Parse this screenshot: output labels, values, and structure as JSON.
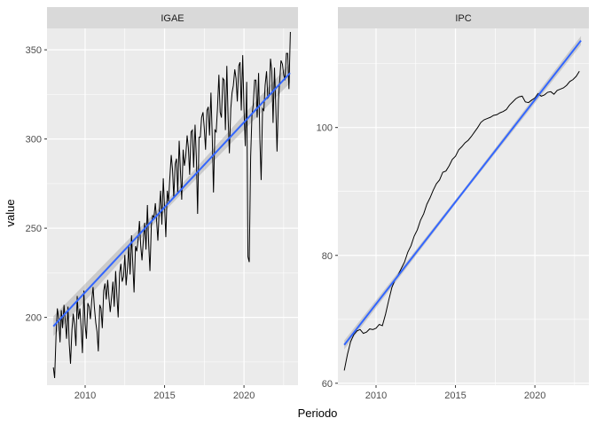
{
  "chart_data": {
    "type": "line",
    "xlabel": "Periodo",
    "ylabel": "value",
    "colors": {
      "series": "#000000",
      "trend": "#3366FF",
      "band": "#999999",
      "panel_bg": "#EBEBEB",
      "strip_bg": "#D9D9D9",
      "grid": "#FFFFFF"
    },
    "grid": true,
    "trend_line": "linear fit with confidence band",
    "panels": [
      {
        "strip": "IGAE",
        "xlim": [
          2007.6,
          2023.4
        ],
        "ylim": [
          162,
          362
        ],
        "x_ticks": [
          2010,
          2015,
          2020
        ],
        "x_tick_labels": [
          "2010",
          "2015",
          "2020"
        ],
        "y_ticks": [
          200,
          250,
          300,
          350
        ],
        "y_tick_labels": [
          "200",
          "250",
          "300",
          "350"
        ],
        "trend": {
          "start": [
            2008.0,
            195
          ],
          "end": [
            2022.9,
            337
          ],
          "band_halfwidth": 4
        },
        "series": {
          "name": "IGAE",
          "x": [
            2008.0,
            2008.08,
            2008.17,
            2008.25,
            2008.33,
            2008.42,
            2008.5,
            2008.58,
            2008.67,
            2008.75,
            2008.83,
            2008.92,
            2009.0,
            2009.08,
            2009.17,
            2009.25,
            2009.33,
            2009.42,
            2009.5,
            2009.58,
            2009.67,
            2009.75,
            2009.83,
            2009.92,
            2010.0,
            2010.08,
            2010.17,
            2010.25,
            2010.33,
            2010.42,
            2010.5,
            2010.58,
            2010.67,
            2010.75,
            2010.83,
            2010.92,
            2011.0,
            2011.08,
            2011.17,
            2011.25,
            2011.33,
            2011.42,
            2011.5,
            2011.58,
            2011.67,
            2011.75,
            2011.83,
            2011.92,
            2012.0,
            2012.08,
            2012.17,
            2012.25,
            2012.33,
            2012.42,
            2012.5,
            2012.58,
            2012.67,
            2012.75,
            2012.83,
            2012.92,
            2013.0,
            2013.08,
            2013.17,
            2013.25,
            2013.33,
            2013.42,
            2013.5,
            2013.58,
            2013.67,
            2013.75,
            2013.83,
            2013.92,
            2014.0,
            2014.08,
            2014.17,
            2014.25,
            2014.33,
            2014.42,
            2014.5,
            2014.58,
            2014.67,
            2014.75,
            2014.83,
            2014.92,
            2015.0,
            2015.08,
            2015.17,
            2015.25,
            2015.33,
            2015.42,
            2015.5,
            2015.58,
            2015.67,
            2015.75,
            2015.83,
            2015.92,
            2016.0,
            2016.08,
            2016.17,
            2016.25,
            2016.33,
            2016.42,
            2016.5,
            2016.58,
            2016.67,
            2016.75,
            2016.83,
            2016.92,
            2017.0,
            2017.08,
            2017.17,
            2017.25,
            2017.33,
            2017.42,
            2017.5,
            2017.58,
            2017.67,
            2017.75,
            2017.83,
            2017.92,
            2018.0,
            2018.08,
            2018.17,
            2018.25,
            2018.33,
            2018.42,
            2018.5,
            2018.58,
            2018.67,
            2018.75,
            2018.83,
            2018.92,
            2019.0,
            2019.08,
            2019.17,
            2019.25,
            2019.33,
            2019.42,
            2019.5,
            2019.58,
            2019.67,
            2019.75,
            2019.83,
            2019.92,
            2020.0,
            2020.08,
            2020.17,
            2020.25,
            2020.33,
            2020.42,
            2020.5,
            2020.58,
            2020.67,
            2020.75,
            2020.83,
            2020.92,
            2021.0,
            2021.08,
            2021.17,
            2021.25,
            2021.33,
            2021.42,
            2021.5,
            2021.58,
            2021.67,
            2021.75,
            2021.83,
            2021.92,
            2022.0,
            2022.08,
            2022.17,
            2022.25,
            2022.33,
            2022.42,
            2022.5,
            2022.58,
            2022.67,
            2022.75,
            2022.83,
            2022.92
          ],
          "values": [
            172,
            166,
            190,
            205,
            200,
            186,
            204,
            194,
            207,
            198,
            188,
            206,
            185,
            174,
            193,
            202,
            196,
            184,
            212,
            199,
            205,
            194,
            180,
            215,
            196,
            188,
            208,
            206,
            199,
            210,
            217,
            206,
            197,
            192,
            181,
            207,
            205,
            194,
            215,
            219,
            210,
            221,
            211,
            203,
            212,
            220,
            206,
            226,
            212,
            200,
            225,
            230,
            220,
            223,
            235,
            218,
            228,
            240,
            224,
            246,
            230,
            214,
            240,
            237,
            243,
            254,
            240,
            232,
            244,
            253,
            238,
            263,
            241,
            226,
            252,
            257,
            256,
            264,
            254,
            243,
            261,
            271,
            252,
            278,
            262,
            245,
            271,
            265,
            278,
            291,
            283,
            267,
            286,
            289,
            270,
            299,
            282,
            266,
            294,
            285,
            290,
            302,
            295,
            280,
            304,
            305,
            284,
            308,
            290,
            258,
            301,
            301,
            312,
            315,
            306,
            294,
            316,
            318,
            302,
            326,
            302,
            270,
            305,
            304,
            317,
            336,
            315,
            312,
            334,
            333,
            305,
            341,
            312,
            292,
            317,
            326,
            330,
            339,
            334,
            321,
            341,
            343,
            316,
            347,
            317,
            296,
            332,
            234,
            231,
            290,
            313,
            319,
            333,
            333,
            312,
            337,
            300,
            277,
            317,
            316,
            330,
            338,
            323,
            324,
            345,
            338,
            309,
            340,
            319,
            293,
            322,
            333,
            344,
            342,
            336,
            333,
            348,
            348,
            328,
            360
          ]
        }
      },
      {
        "strip": "IPC",
        "xlim": [
          2007.6,
          2023.4
        ],
        "ylim": [
          59.7,
          115.5
        ],
        "x_ticks": [
          2010,
          2015,
          2020
        ],
        "x_tick_labels": [
          "2010",
          "2015",
          "2020"
        ],
        "y_ticks": [
          60,
          80,
          100
        ],
        "y_tick_labels": [
          "60",
          "80",
          "100"
        ],
        "trend": {
          "start": [
            2008.0,
            66.0
          ],
          "end": [
            2022.9,
            113.6
          ],
          "band_halfwidth": 0.5
        },
        "series": {
          "name": "IPC",
          "x": [
            2008.0,
            2008.2,
            2008.4,
            2008.6,
            2008.8,
            2009.0,
            2009.2,
            2009.4,
            2009.6,
            2009.8,
            2010.0,
            2010.2,
            2010.4,
            2010.6,
            2010.8,
            2011.0,
            2011.2,
            2011.4,
            2011.6,
            2011.8,
            2012.0,
            2012.2,
            2012.4,
            2012.6,
            2012.8,
            2013.0,
            2013.2,
            2013.4,
            2013.6,
            2013.8,
            2014.0,
            2014.2,
            2014.4,
            2014.6,
            2014.8,
            2015.0,
            2015.2,
            2015.4,
            2015.6,
            2015.8,
            2016.0,
            2016.2,
            2016.4,
            2016.6,
            2016.8,
            2017.0,
            2017.2,
            2017.4,
            2017.6,
            2017.8,
            2018.0,
            2018.2,
            2018.4,
            2018.6,
            2018.8,
            2019.0,
            2019.2,
            2019.4,
            2019.6,
            2019.8,
            2020.0,
            2020.2,
            2020.4,
            2020.6,
            2020.8,
            2021.0,
            2021.2,
            2021.4,
            2021.6,
            2021.8,
            2022.0,
            2022.2,
            2022.4,
            2022.6,
            2022.8
          ],
          "values": [
            62.0,
            64.5,
            66.5,
            67.6,
            68.2,
            68.4,
            67.8,
            68.0,
            68.5,
            68.4,
            68.6,
            69.2,
            69.0,
            70.8,
            73.0,
            75.0,
            76.2,
            77.0,
            78.0,
            79.0,
            80.5,
            81.5,
            83.0,
            84.0,
            85.5,
            86.5,
            88.0,
            89.0,
            90.2,
            91.2,
            91.8,
            93.0,
            93.2,
            94.0,
            95.0,
            95.5,
            96.5,
            97.0,
            97.6,
            98.0,
            98.6,
            99.3,
            100.0,
            100.8,
            101.2,
            101.4,
            101.6,
            101.9,
            102.0,
            102.3,
            102.5,
            102.8,
            103.5,
            104.0,
            104.5,
            104.8,
            104.9,
            104.0,
            103.9,
            104.3,
            104.6,
            105.3,
            104.9,
            105.1,
            105.5,
            105.6,
            105.2,
            105.8,
            106.0,
            106.2,
            106.6,
            107.2,
            107.5,
            108.0,
            108.8
          ]
        }
      }
    ]
  }
}
